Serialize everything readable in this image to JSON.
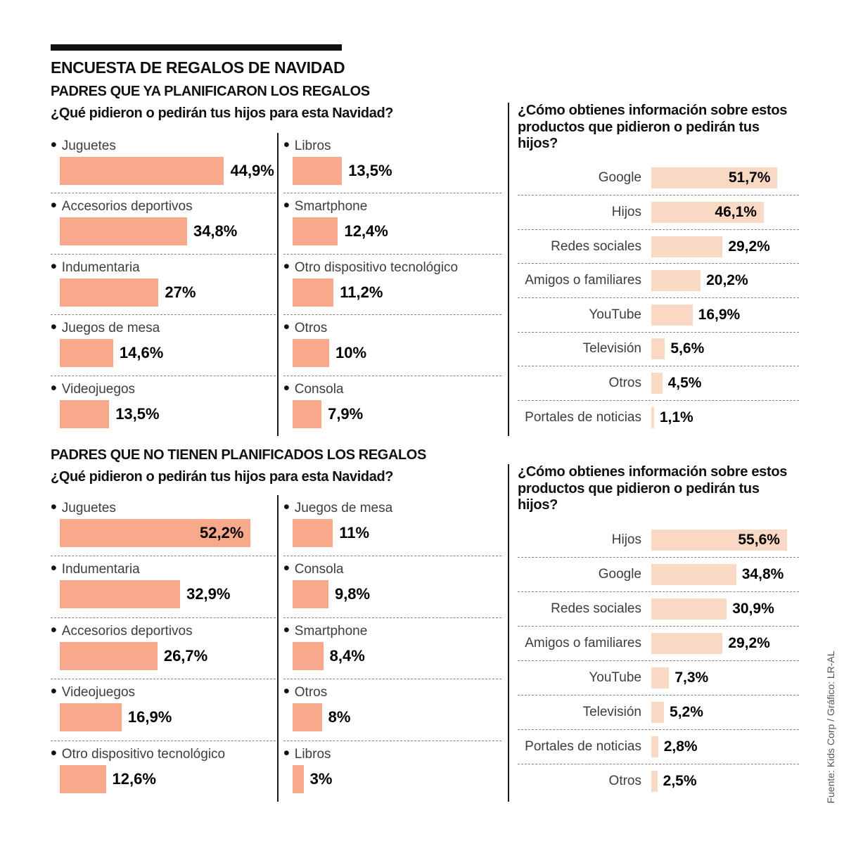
{
  "title": "ENCUESTA DE REGALOS DE NAVIDAD",
  "source_note": "Fuente: Kids Corp / Gráfico: LR-AL",
  "colors": {
    "gift_bar": "#f8a88b",
    "info_bar": "#fad9c4",
    "text": "#111111",
    "label": "#3d3d3d"
  },
  "chart_data": [
    {
      "type": "bar",
      "unit": "%",
      "section_title": "PADRES QUE YA PLANIFICARON LOS REGALOS",
      "question": "¿Qué pidieron o pedirán tus hijos para esta Navidad?",
      "gift_columns": [
        [
          {
            "label": "Juguetes",
            "value": 44.9,
            "display": "44,9%"
          },
          {
            "label": "Accesorios deportivos",
            "value": 34.8,
            "display": "34,8%"
          },
          {
            "label": "Indumentaria",
            "value": 27,
            "display": "27%"
          },
          {
            "label": "Juegos de mesa",
            "value": 14.6,
            "display": "14,6%"
          },
          {
            "label": "Videojuegos",
            "value": 13.5,
            "display": "13,5%"
          }
        ],
        [
          {
            "label": "Libros",
            "value": 13.5,
            "display": "13,5%"
          },
          {
            "label": "Smartphone",
            "value": 12.4,
            "display": "12,4%"
          },
          {
            "label": "Otro dispositivo tecnológico",
            "value": 11.2,
            "display": "11,2%"
          },
          {
            "label": "Otros",
            "value": 10,
            "display": "10%"
          },
          {
            "label": "Consola",
            "value": 7.9,
            "display": "7,9%"
          }
        ]
      ],
      "info_question": "¿Cómo obtienes información sobre estos productos que pidieron o pedirán tus hijos?",
      "info_sources": [
        {
          "label": "Google",
          "value": 51.7,
          "display": "51,7%"
        },
        {
          "label": "Hijos",
          "value": 46.1,
          "display": "46,1%"
        },
        {
          "label": "Redes sociales",
          "value": 29.2,
          "display": "29,2%"
        },
        {
          "label": "Amigos o familiares",
          "value": 20.2,
          "display": "20,2%"
        },
        {
          "label": "YouTube",
          "value": 16.9,
          "display": "16,9%"
        },
        {
          "label": "Televisión",
          "value": 5.6,
          "display": "5,6%"
        },
        {
          "label": "Otros",
          "value": 4.5,
          "display": "4,5%"
        },
        {
          "label": "Portales de noticias",
          "value": 1.1,
          "display": "1,1%"
        }
      ]
    },
    {
      "type": "bar",
      "unit": "%",
      "section_title": "PADRES QUE NO TIENEN PLANIFICADOS LOS REGALOS",
      "question": "¿Qué pidieron o pedirán tus hijos para esta Navidad?",
      "gift_columns": [
        [
          {
            "label": "Juguetes",
            "value": 52.2,
            "display": "52,2%"
          },
          {
            "label": "Indumentaria",
            "value": 32.9,
            "display": "32,9%"
          },
          {
            "label": "Accesorios deportivos",
            "value": 26.7,
            "display": "26,7%"
          },
          {
            "label": "Videojuegos",
            "value": 16.9,
            "display": "16,9%"
          },
          {
            "label": "Otro dispositivo tecnológico",
            "value": 12.6,
            "display": "12,6%"
          }
        ],
        [
          {
            "label": "Juegos de mesa",
            "value": 11,
            "display": "11%"
          },
          {
            "label": "Consola",
            "value": 9.8,
            "display": "9,8%"
          },
          {
            "label": "Smartphone",
            "value": 8.4,
            "display": "8,4%"
          },
          {
            "label": "Otros",
            "value": 8,
            "display": "8%"
          },
          {
            "label": "Libros",
            "value": 3,
            "display": "3%"
          }
        ]
      ],
      "info_question": "¿Cómo obtienes información sobre estos productos que pidieron o pedirán tus hijos?",
      "info_sources": [
        {
          "label": "Hijos",
          "value": 55.6,
          "display": "55,6%"
        },
        {
          "label": "Google",
          "value": 34.8,
          "display": "34,8%"
        },
        {
          "label": "Redes sociales",
          "value": 30.9,
          "display": "30,9%"
        },
        {
          "label": "Amigos o familiares",
          "value": 29.2,
          "display": "29,2%"
        },
        {
          "label": "YouTube",
          "value": 7.3,
          "display": "7,3%"
        },
        {
          "label": "Televisión",
          "value": 5.2,
          "display": "5,2%"
        },
        {
          "label": "Portales de noticias",
          "value": 2.8,
          "display": "2,8%"
        },
        {
          "label": "Otros",
          "value": 2.5,
          "display": "2,5%"
        }
      ]
    }
  ]
}
